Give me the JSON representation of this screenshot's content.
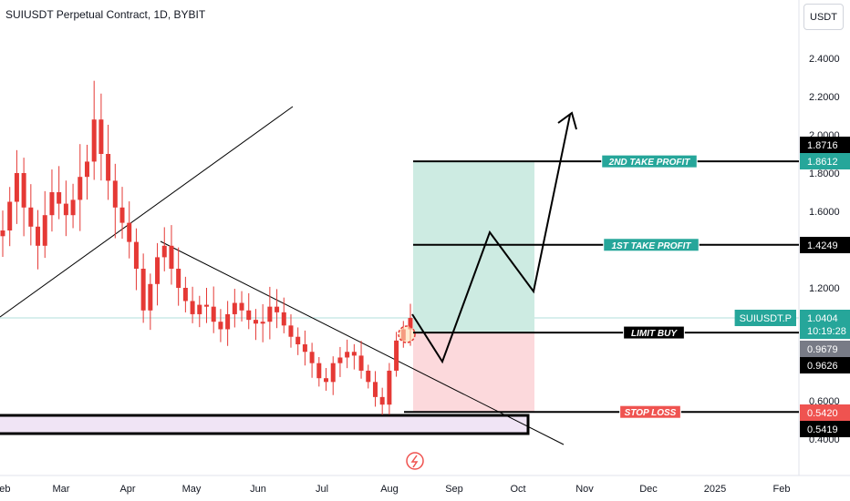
{
  "header": {
    "title": "SUIUSDT Perpetual Contract, 1D, BYBIT",
    "currency": "USDT"
  },
  "colors": {
    "candle": "#e53935",
    "target_zone": "#cdebe2",
    "stop_zone": "#fcd9dc",
    "teal_label": "#26a69a",
    "red_label": "#ef5350",
    "support_zone": "#f0e4f5"
  },
  "chart_data": {
    "type": "candlestick",
    "title": "SUIUSDT Perpetual Contract, 1D, BYBIT",
    "y_axis": {
      "ticks": [
        "2.4000",
        "2.2000",
        "2.0000",
        "1.8000",
        "1.6000",
        "1.2000",
        "0.6000",
        "0.4000"
      ],
      "unit": "USDT"
    },
    "x_axis": {
      "ticks": [
        "Feb",
        "Mar",
        "Apr",
        "May",
        "Jun",
        "Jul",
        "Aug",
        "Sep",
        "Oct",
        "Nov",
        "Dec",
        "2025",
        "Feb"
      ]
    },
    "price_closes": [
      1.5,
      1.65,
      1.8,
      1.62,
      1.52,
      1.42,
      1.58,
      1.7,
      1.64,
      1.58,
      1.66,
      1.78,
      1.86,
      2.08,
      1.9,
      1.76,
      1.62,
      1.54,
      1.44,
      1.3,
      1.08,
      1.22,
      1.36,
      1.42,
      1.3,
      1.2,
      1.13,
      1.06,
      1.11,
      1.1,
      1.02,
      0.98,
      1.06,
      1.12,
      1.08,
      1.03,
      1.01,
      1.02,
      1.1,
      1.07,
      1.0,
      0.94,
      0.9,
      0.86,
      0.8,
      0.72,
      0.7,
      0.8,
      0.83,
      0.86,
      0.84,
      0.76,
      0.7,
      0.62,
      0.58,
      0.76,
      0.92,
      0.98,
      1.04
    ],
    "levels": [
      {
        "label": "2ND TAKE PROFIT",
        "price": "1.8612"
      },
      {
        "label": "1ST TAKE PROFIT",
        "price": "1.4249"
      },
      {
        "label": "LIMIT BUY",
        "price": "0.9626"
      },
      {
        "label": "STOP LOSS",
        "price": "0.5419"
      }
    ],
    "price_tags": [
      {
        "value": "1.8716",
        "style": "dark"
      },
      {
        "value": "1.8612",
        "style": "teal"
      },
      {
        "value": "1.4249",
        "style": "dark"
      },
      {
        "value": "1.0404",
        "style": "teal",
        "sub": "10:19:28",
        "symbol": "SUIUSDT.P"
      },
      {
        "value": "0.9679",
        "style": "gray"
      },
      {
        "value": "0.9626",
        "style": "dark"
      },
      {
        "value": "0.5420",
        "style": "red"
      },
      {
        "value": "0.5419",
        "style": "dark"
      }
    ],
    "grid": false
  }
}
